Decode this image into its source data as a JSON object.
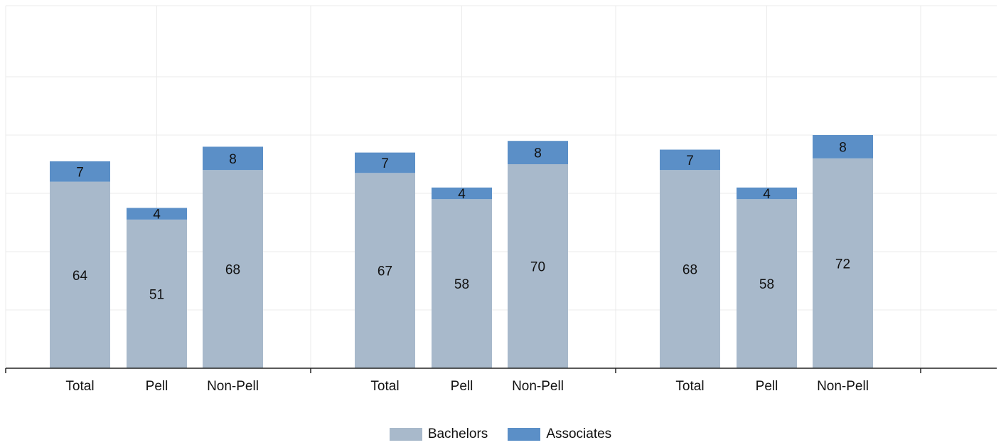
{
  "chart_data": {
    "type": "bar",
    "stacked": true,
    "title": "",
    "xlabel": "",
    "ylabel": "",
    "ylim": [
      0,
      100
    ],
    "grid": true,
    "legend_position": "bottom-center",
    "groups": [
      {
        "categories": [
          "Total",
          "Pell",
          "Non-Pell"
        ]
      },
      {
        "categories": [
          "Total",
          "Pell",
          "Non-Pell"
        ]
      },
      {
        "categories": [
          "Total",
          "Pell",
          "Non-Pell"
        ]
      }
    ],
    "series": [
      {
        "name": "Bachelors",
        "color": "#a8b9cb",
        "values": [
          64,
          51,
          68,
          67,
          58,
          70,
          68,
          58,
          72
        ]
      },
      {
        "name": "Associates",
        "color": "#5b8fc7",
        "values": [
          7,
          4,
          8,
          7,
          4,
          8,
          7,
          4,
          8
        ]
      }
    ]
  }
}
